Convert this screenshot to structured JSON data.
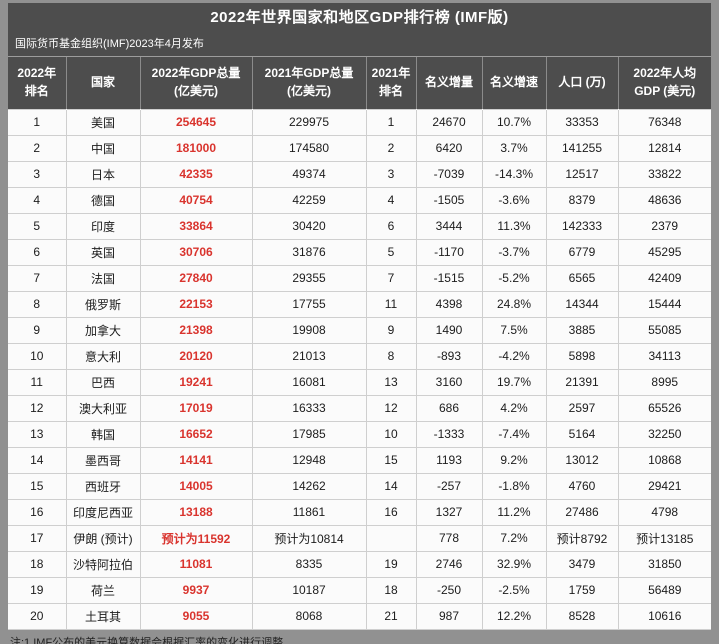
{
  "page": {
    "title": "2022年世界国家和地区GDP排行榜 (IMF版)",
    "subtitle": "国际货币基金组织(IMF)2023年4月发布",
    "footnote": "注:1.IMF公布的美元换算数据会根据汇率的变化进行调整"
  },
  "colors": {
    "header_background": "#4d4d4d",
    "accent_red": "#d9342e",
    "page_background": "#919191"
  },
  "table": {
    "headers": [
      "2022年\n排名",
      "国家",
      "2022年GDP总量\n(亿美元)",
      "2021年GDP总量\n(亿美元)",
      "2021年\n排名",
      "名义增量",
      "名义增速",
      "人口 (万)",
      "2022年人均\nGDP (美元)"
    ],
    "rows": [
      [
        "1",
        "美国",
        "254645",
        "229975",
        "1",
        "24670",
        "10.7%",
        "33353",
        "76348"
      ],
      [
        "2",
        "中国",
        "181000",
        "174580",
        "2",
        "6420",
        "3.7%",
        "141255",
        "12814"
      ],
      [
        "3",
        "日本",
        "42335",
        "49374",
        "3",
        "-7039",
        "-14.3%",
        "12517",
        "33822"
      ],
      [
        "4",
        "德国",
        "40754",
        "42259",
        "4",
        "-1505",
        "-3.6%",
        "8379",
        "48636"
      ],
      [
        "5",
        "印度",
        "33864",
        "30420",
        "6",
        "3444",
        "11.3%",
        "142333",
        "2379"
      ],
      [
        "6",
        "英国",
        "30706",
        "31876",
        "5",
        "-1170",
        "-3.7%",
        "6779",
        "45295"
      ],
      [
        "7",
        "法国",
        "27840",
        "29355",
        "7",
        "-1515",
        "-5.2%",
        "6565",
        "42409"
      ],
      [
        "8",
        "俄罗斯",
        "22153",
        "17755",
        "11",
        "4398",
        "24.8%",
        "14344",
        "15444"
      ],
      [
        "9",
        "加拿大",
        "21398",
        "19908",
        "9",
        "1490",
        "7.5%",
        "3885",
        "55085"
      ],
      [
        "10",
        "意大利",
        "20120",
        "21013",
        "8",
        "-893",
        "-4.2%",
        "5898",
        "34113"
      ],
      [
        "11",
        "巴西",
        "19241",
        "16081",
        "13",
        "3160",
        "19.7%",
        "21391",
        "8995"
      ],
      [
        "12",
        "澳大利亚",
        "17019",
        "16333",
        "12",
        "686",
        "4.2%",
        "2597",
        "65526"
      ],
      [
        "13",
        "韩国",
        "16652",
        "17985",
        "10",
        "-1333",
        "-7.4%",
        "5164",
        "32250"
      ],
      [
        "14",
        "墨西哥",
        "14141",
        "12948",
        "15",
        "1193",
        "9.2%",
        "13012",
        "10868"
      ],
      [
        "15",
        "西班牙",
        "14005",
        "14262",
        "14",
        "-257",
        "-1.8%",
        "4760",
        "29421"
      ],
      [
        "16",
        "印度尼西亚",
        "13188",
        "11861",
        "16",
        "1327",
        "11.2%",
        "27486",
        "4798"
      ],
      [
        "17",
        "伊朗 (预计)",
        "预计为11592",
        "预计为10814",
        "",
        "778",
        "7.2%",
        "预计8792",
        "预计13185"
      ],
      [
        "18",
        "沙特阿拉伯",
        "11081",
        "8335",
        "19",
        "2746",
        "32.9%",
        "3479",
        "31850"
      ],
      [
        "19",
        "荷兰",
        "9937",
        "10187",
        "18",
        "-250",
        "-2.5%",
        "1759",
        "56489"
      ],
      [
        "20",
        "土耳其",
        "9055",
        "8068",
        "21",
        "987",
        "12.2%",
        "8528",
        "10616"
      ]
    ]
  }
}
